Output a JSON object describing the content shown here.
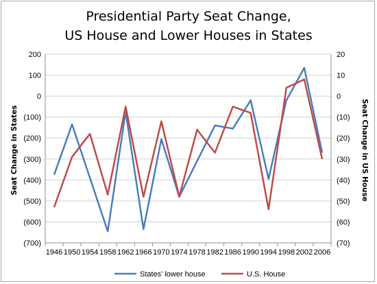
{
  "chart_data": {
    "type": "line",
    "title": [
      "Presidential Party Seat Change,",
      "US House and Lower Houses in States"
    ],
    "categories": [
      "1946",
      "1950",
      "1954",
      "1958",
      "1962",
      "1966",
      "1970",
      "1974",
      "1978",
      "1982",
      "1986",
      "1990",
      "1994",
      "1998",
      "2002",
      "2006"
    ],
    "left_axis": {
      "label": "Seat Change in States",
      "ylim": [
        -700,
        200
      ],
      "ticks": [
        200,
        100,
        0,
        -100,
        -200,
        -300,
        -400,
        -500,
        -600,
        -700
      ],
      "tick_labels": [
        "200",
        "100",
        "0",
        "(100)",
        "(200)",
        "(300)",
        "(400)",
        "(500)",
        "(600)",
        "(700)"
      ]
    },
    "right_axis": {
      "label": "Seat Change in US House",
      "ylim": [
        -70,
        20
      ],
      "ticks": [
        20,
        10,
        0,
        -10,
        -20,
        -30,
        -40,
        -50,
        -60,
        -70
      ],
      "tick_labels": [
        "20",
        "10",
        "0",
        "(10)",
        "(20)",
        "(30)",
        "(40)",
        "(50)",
        "(60)",
        "(70)"
      ]
    },
    "series": [
      {
        "name": "States' lower house",
        "axis": "left",
        "color": "#4a7ebb",
        "values": [
          -375,
          -135,
          -390,
          -645,
          -75,
          -635,
          -205,
          -480,
          -310,
          -140,
          -155,
          -20,
          -395,
          -20,
          135,
          -270
        ]
      },
      {
        "name": "U.S. House",
        "axis": "right",
        "color": "#be4b48",
        "values": [
          -53,
          -29,
          -18,
          -47,
          -5,
          -48,
          -12,
          -48,
          -16,
          -27,
          -5,
          -8,
          -54,
          4,
          8,
          -30
        ]
      }
    ],
    "grid": "horizontal",
    "legend": "bottom"
  }
}
